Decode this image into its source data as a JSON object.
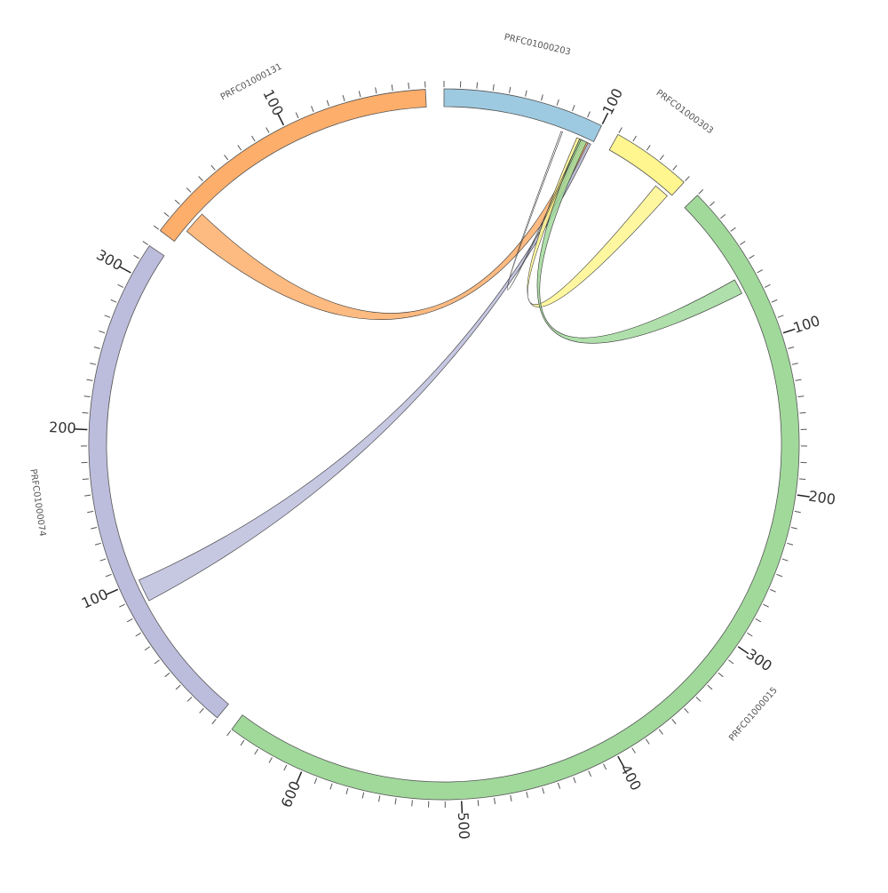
{
  "chart_data": {
    "type": "chord",
    "segments": [
      {
        "name": "PRFC01000203",
        "color": "#9ECAE1",
        "length": 100
      },
      {
        "name": "PRFC01000303",
        "color": "#FFF68F",
        "length": 50
      },
      {
        "name": "PRFC01000015",
        "color": "#A1D99B",
        "length": 650
      },
      {
        "name": "PRFC01000074",
        "color": "#BCBDDC",
        "length": 320
      },
      {
        "name": "PRFC01000131",
        "color": "#FDAE6B",
        "length": 190
      }
    ],
    "tick_interval": 10,
    "major_tick_interval": 100,
    "links": [
      {
        "from_segment": "PRFC01000131",
        "from_range": [
          10,
          25
        ],
        "to_segment": "PRFC01000203",
        "to_range": [
          92,
          98
        ],
        "color": "#FDAE6B"
      },
      {
        "from_segment": "PRFC01000074",
        "from_range": [
          85,
          100
        ],
        "to_segment": "PRFC01000203",
        "to_range": [
          97,
          99
        ],
        "color": "#BCBDDC"
      },
      {
        "from_segment": "PRFC01000303",
        "from_range": [
          38,
          48
        ],
        "to_segment": "PRFC01000203",
        "to_range": [
          89,
          93
        ],
        "color": "#FFF68F"
      },
      {
        "from_segment": "PRFC01000015",
        "from_range": [
          57,
          67
        ],
        "to_segment": "PRFC01000203",
        "to_range": [
          91,
          96
        ],
        "color": "#A1D99B"
      },
      {
        "from_segment": "PRFC01000203",
        "from_range": [
          78,
          79
        ],
        "to_segment": "PRFC01000203",
        "to_range": [
          91,
          92
        ],
        "color": "#FFFFFF"
      }
    ]
  }
}
